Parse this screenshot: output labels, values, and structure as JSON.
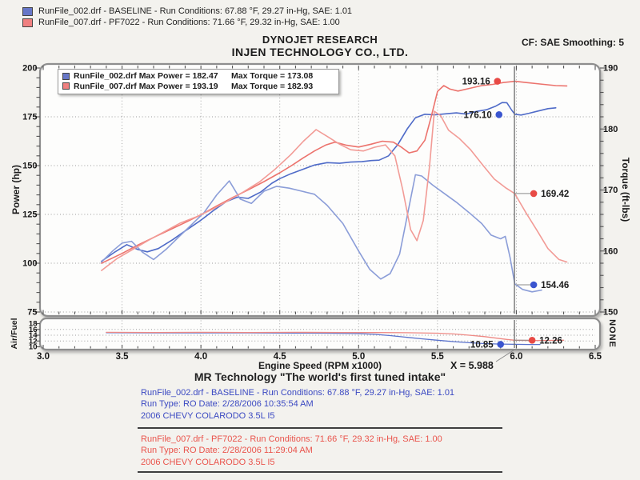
{
  "colors": {
    "blue_power": "#4f6bc8",
    "blue_torque": "#8b9dd8",
    "red_power": "#ec736d",
    "red_torque": "#f29b96",
    "blue_dot": "#3a55cf",
    "red_dot": "#e84a45",
    "blue_text": "#3b49c2",
    "red_text": "#ea544c",
    "swatch_blue": "#6777c8",
    "swatch_red": "#f08080"
  },
  "top_legend": [
    {
      "color_key": "blue",
      "text": "RunFile_002.drf - BASELINE  -  Run Conditions: 67.88 °F, 29.27 in-Hg, SAE: 1.01"
    },
    {
      "color_key": "red",
      "text": "RunFile_007.drf - PF7022  -  Run Conditions: 71.66 °F, 29.32 in-Hg, SAE: 1.00"
    }
  ],
  "cf_note": "CF: SAE  Smoothing: 5",
  "titles": {
    "line1": "DYNOJET RESEARCH",
    "line2": "INJEN TECHNOLOGY CO., LTD."
  },
  "inner_legend": [
    {
      "color_key": "blue",
      "file_max_power": "RunFile_002.drf Max Power = 182.47",
      "max_torque": "Max Torque = 173.08"
    },
    {
      "color_key": "red",
      "file_max_power": "RunFile_007.drf Max Power = 193.19",
      "max_torque": "Max Torque = 182.93"
    }
  ],
  "chart_data": {
    "type": "line",
    "xlabel": "Engine Speed (RPM x1000)",
    "x_range": [
      3.0,
      6.5
    ],
    "x_tick_labels": [
      "3.0",
      "3.5",
      "4.0",
      "4.5",
      "5.0",
      "5.5",
      "6.0",
      "6.5"
    ],
    "x_gridlines": [
      3.5,
      4.0,
      4.5,
      5.0,
      5.5,
      6.0
    ],
    "cursor_x": 5.988,
    "cursor_readout": "X = 5.988",
    "main": {
      "left_axis": {
        "label": "Power (hp)",
        "range": [
          75,
          200
        ],
        "ticks": [
          200,
          175,
          150,
          125,
          100,
          75
        ]
      },
      "right_axis": {
        "label": "Torque (ft-lbs)",
        "range": [
          150,
          190
        ],
        "ticks": [
          190,
          180,
          170,
          160,
          150
        ]
      },
      "h_gridlines_hp": [
        175,
        150,
        125,
        100,
        75
      ],
      "series": [
        {
          "key": "baseline-power",
          "name": "RunFile_002.drf Power",
          "axis": "left",
          "color": "#4f6bc8",
          "points": [
            [
              3.37,
              101
            ],
            [
              3.45,
              105.5
            ],
            [
              3.53,
              109.5
            ],
            [
              3.6,
              107
            ],
            [
              3.66,
              105.8
            ],
            [
              3.73,
              107.5
            ],
            [
              3.82,
              112
            ],
            [
              3.9,
              116.5
            ],
            [
              4.0,
              122
            ],
            [
              4.08,
              127
            ],
            [
              4.16,
              131.5
            ],
            [
              4.23,
              133.8
            ],
            [
              4.3,
              133.2
            ],
            [
              4.38,
              136.5
            ],
            [
              4.45,
              141
            ],
            [
              4.5,
              143.3
            ],
            [
              4.57,
              145.8
            ],
            [
              4.65,
              148.2
            ],
            [
              4.72,
              150.3
            ],
            [
              4.8,
              151.5
            ],
            [
              4.88,
              151.2
            ],
            [
              4.95,
              151.8
            ],
            [
              5.02,
              152
            ],
            [
              5.08,
              152.6
            ],
            [
              5.13,
              152.8
            ],
            [
              5.19,
              155
            ],
            [
              5.25,
              161
            ],
            [
              5.31,
              169
            ],
            [
              5.36,
              174.5
            ],
            [
              5.42,
              176.3
            ],
            [
              5.48,
              176
            ],
            [
              5.55,
              176.5
            ],
            [
              5.62,
              177
            ],
            [
              5.68,
              176.4
            ],
            [
              5.75,
              177.8
            ],
            [
              5.81,
              178.6
            ],
            [
              5.87,
              180.5
            ],
            [
              5.91,
              182.3
            ],
            [
              5.94,
              182.2
            ],
            [
              5.97,
              178.5
            ],
            [
              5.99,
              176.3
            ],
            [
              6.03,
              175.9
            ],
            [
              6.08,
              176.8
            ],
            [
              6.14,
              178
            ],
            [
              6.2,
              179.2
            ],
            [
              6.25,
              179.6
            ]
          ]
        },
        {
          "key": "pf7022-power",
          "name": "RunFile_007.drf Power",
          "axis": "left",
          "color": "#ec736d",
          "points": [
            [
              3.37,
              100
            ],
            [
              3.5,
              105
            ],
            [
              3.6,
              109.3
            ],
            [
              3.7,
              113.2
            ],
            [
              3.8,
              117
            ],
            [
              3.9,
              120.8
            ],
            [
              4.0,
              124.8
            ],
            [
              4.1,
              129.3
            ],
            [
              4.2,
              133.6
            ],
            [
              4.3,
              137.6
            ],
            [
              4.4,
              141.8
            ],
            [
              4.5,
              146.3
            ],
            [
              4.58,
              150.3
            ],
            [
              4.65,
              154
            ],
            [
              4.72,
              157.5
            ],
            [
              4.79,
              160.5
            ],
            [
              4.85,
              162
            ],
            [
              4.92,
              160.5
            ],
            [
              5.0,
              159.5
            ],
            [
              5.08,
              161
            ],
            [
              5.15,
              162.5
            ],
            [
              5.22,
              162
            ],
            [
              5.27,
              159.5
            ],
            [
              5.32,
              156.5
            ],
            [
              5.37,
              157.5
            ],
            [
              5.42,
              163
            ],
            [
              5.46,
              175
            ],
            [
              5.5,
              188
            ],
            [
              5.54,
              191
            ],
            [
              5.58,
              189.2
            ],
            [
              5.63,
              188.2
            ],
            [
              5.7,
              189.5
            ],
            [
              5.78,
              191
            ],
            [
              5.85,
              191.6
            ],
            [
              5.92,
              192.6
            ],
            [
              5.99,
              193.2
            ],
            [
              6.07,
              192.5
            ],
            [
              6.15,
              191.8
            ],
            [
              6.25,
              191
            ],
            [
              6.32,
              190.8
            ]
          ]
        },
        {
          "key": "baseline-torque",
          "name": "RunFile_002.drf Torque",
          "axis": "right",
          "color": "#8b9dd8",
          "points": [
            [
              3.37,
              158.2
            ],
            [
              3.44,
              160
            ],
            [
              3.5,
              161.3
            ],
            [
              3.56,
              161.6
            ],
            [
              3.63,
              159.8
            ],
            [
              3.7,
              158.6
            ],
            [
              3.78,
              160.3
            ],
            [
              3.86,
              162.3
            ],
            [
              3.94,
              164.3
            ],
            [
              4.02,
              166.3
            ],
            [
              4.1,
              169.2
            ],
            [
              4.18,
              171.5
            ],
            [
              4.25,
              168.5
            ],
            [
              4.32,
              167.8
            ],
            [
              4.4,
              169.8
            ],
            [
              4.48,
              170.6
            ],
            [
              4.56,
              170.3
            ],
            [
              4.64,
              169.8
            ],
            [
              4.72,
              169.3
            ],
            [
              4.8,
              167.5
            ],
            [
              4.9,
              164.5
            ],
            [
              5.0,
              160
            ],
            [
              5.07,
              157
            ],
            [
              5.14,
              155.4
            ],
            [
              5.2,
              156.3
            ],
            [
              5.26,
              159.5
            ],
            [
              5.31,
              166
            ],
            [
              5.36,
              172.5
            ],
            [
              5.4,
              172.3
            ],
            [
              5.47,
              170.8
            ],
            [
              5.55,
              169.3
            ],
            [
              5.62,
              168
            ],
            [
              5.7,
              166.3
            ],
            [
              5.78,
              164.5
            ],
            [
              5.84,
              162.6
            ],
            [
              5.9,
              162
            ],
            [
              5.93,
              162.4
            ],
            [
              5.96,
              159
            ],
            [
              5.99,
              154.6
            ],
            [
              6.04,
              153.7
            ],
            [
              6.1,
              153.3
            ],
            [
              6.16,
              153.6
            ]
          ]
        },
        {
          "key": "pf7022-torque",
          "name": "RunFile_007.drf Torque",
          "axis": "right",
          "color": "#f29b96",
          "points": [
            [
              3.37,
              156.8
            ],
            [
              3.47,
              158.8
            ],
            [
              3.57,
              160.3
            ],
            [
              3.67,
              161.8
            ],
            [
              3.77,
              163.2
            ],
            [
              3.87,
              164.6
            ],
            [
              3.97,
              165.6
            ],
            [
              4.07,
              166.8
            ],
            [
              4.17,
              168.2
            ],
            [
              4.27,
              169.7
            ],
            [
              4.37,
              171.3
            ],
            [
              4.47,
              173.4
            ],
            [
              4.57,
              175.8
            ],
            [
              4.65,
              178
            ],
            [
              4.73,
              179.9
            ],
            [
              4.8,
              178.8
            ],
            [
              4.88,
              177.5
            ],
            [
              4.95,
              176.6
            ],
            [
              5.03,
              176.4
            ],
            [
              5.1,
              177
            ],
            [
              5.17,
              177.4
            ],
            [
              5.23,
              175.6
            ],
            [
              5.28,
              170
            ],
            [
              5.33,
              163.5
            ],
            [
              5.37,
              161.7
            ],
            [
              5.41,
              165
            ],
            [
              5.45,
              174
            ],
            [
              5.48,
              182.9
            ],
            [
              5.52,
              182.2
            ],
            [
              5.57,
              179.8
            ],
            [
              5.64,
              178.4
            ],
            [
              5.71,
              176.6
            ],
            [
              5.79,
              174
            ],
            [
              5.86,
              171.8
            ],
            [
              5.93,
              170.4
            ],
            [
              5.99,
              169.4
            ],
            [
              6.06,
              166.3
            ],
            [
              6.13,
              163.4
            ],
            [
              6.2,
              160.4
            ],
            [
              6.27,
              158.6
            ],
            [
              6.32,
              158.2
            ]
          ]
        }
      ],
      "annotations": [
        {
          "text": "193.16",
          "axis": "left",
          "dot": [
            5.88,
            193.2
          ],
          "label_side": "left",
          "color": "#e84a45"
        },
        {
          "text": "176.10",
          "axis": "left",
          "dot": [
            5.89,
            176.1
          ],
          "label_side": "left",
          "color": "#3a55cf"
        },
        {
          "text": "169.42",
          "axis": "right",
          "dot": [
            6.11,
            169.42
          ],
          "label_side": "right",
          "color": "#e84a45",
          "connector_from": 5.988
        },
        {
          "text": "154.46",
          "axis": "right",
          "dot": [
            6.11,
            154.46
          ],
          "label_side": "right",
          "color": "#3a55cf",
          "connector_from": 6.0
        }
      ]
    },
    "af": {
      "left_axis": {
        "label": "Air/Fuel",
        "range": [
          10,
          18
        ],
        "ticks": [
          18,
          16,
          14,
          12,
          10
        ]
      },
      "right_label": "NONE",
      "h_gridlines": [
        16,
        14,
        12
      ],
      "series": [
        {
          "key": "baseline-af",
          "name": "RunFile_002.drf Air/Fuel",
          "color": "#5a72cc",
          "points": [
            [
              3.4,
              14.85
            ],
            [
              3.7,
              14.8
            ],
            [
              4.0,
              14.8
            ],
            [
              4.3,
              14.8
            ],
            [
              4.6,
              14.75
            ],
            [
              4.8,
              14.7
            ],
            [
              5.0,
              14.55
            ],
            [
              5.1,
              14.3
            ],
            [
              5.2,
              13.85
            ],
            [
              5.3,
              13.3
            ],
            [
              5.4,
              12.75
            ],
            [
              5.5,
              12.25
            ],
            [
              5.6,
              11.8
            ],
            [
              5.7,
              11.4
            ],
            [
              5.8,
              11.1
            ],
            [
              5.9,
              10.95
            ],
            [
              5.99,
              10.85
            ],
            [
              6.08,
              10.8
            ],
            [
              6.15,
              10.8
            ]
          ]
        },
        {
          "key": "pf7022-af",
          "name": "RunFile_007.drf Air/Fuel",
          "color": "#ee8984",
          "points": [
            [
              3.4,
              15.0
            ],
            [
              3.7,
              14.95
            ],
            [
              4.0,
              15.0
            ],
            [
              4.3,
              14.95
            ],
            [
              4.6,
              15.0
            ],
            [
              4.9,
              14.95
            ],
            [
              5.1,
              14.9
            ],
            [
              5.3,
              14.85
            ],
            [
              5.5,
              14.7
            ],
            [
              5.6,
              14.45
            ],
            [
              5.7,
              14.0
            ],
            [
              5.8,
              13.5
            ],
            [
              5.88,
              12.95
            ],
            [
              5.94,
              12.55
            ],
            [
              5.99,
              12.26
            ],
            [
              6.1,
              12.15
            ],
            [
              6.2,
              12.2
            ],
            [
              6.3,
              12.25
            ]
          ]
        }
      ],
      "annotations": [
        {
          "text": "10.85",
          "dot": [
            5.9,
            10.85
          ],
          "label_side": "left",
          "color": "#3a55cf"
        },
        {
          "text": "12.26",
          "dot": [
            6.1,
            12.26
          ],
          "label_side": "right",
          "color": "#e84a45",
          "connector_from": 5.988
        }
      ]
    }
  },
  "footer": {
    "xlabel": "Engine Speed (RPM x1000)",
    "cursor_readout": "X = 5.988",
    "tagline": "MR Technology \"The world's first tuned intake\"",
    "runs": [
      {
        "color_key": "blue",
        "line1": "RunFile_002.drf - BASELINE  -  Run Conditions: 67.88 °F, 29.27 in-Hg, SAE: 1.01",
        "line2": "Run Type: RO  Date: 2/28/2006 10:35:54 AM",
        "line3": "2006 CHEVY COLARODO 3.5L I5"
      },
      {
        "color_key": "red",
        "line1": "RunFile_007.drf - PF7022  -  Run Conditions: 71.66 °F, 29.32 in-Hg, SAE: 1.00",
        "line2": "Run Type: RO  Date: 2/28/2006 11:29:04 AM",
        "line3": "2006 CHEVY COLARODO 3.5L I5"
      }
    ]
  }
}
